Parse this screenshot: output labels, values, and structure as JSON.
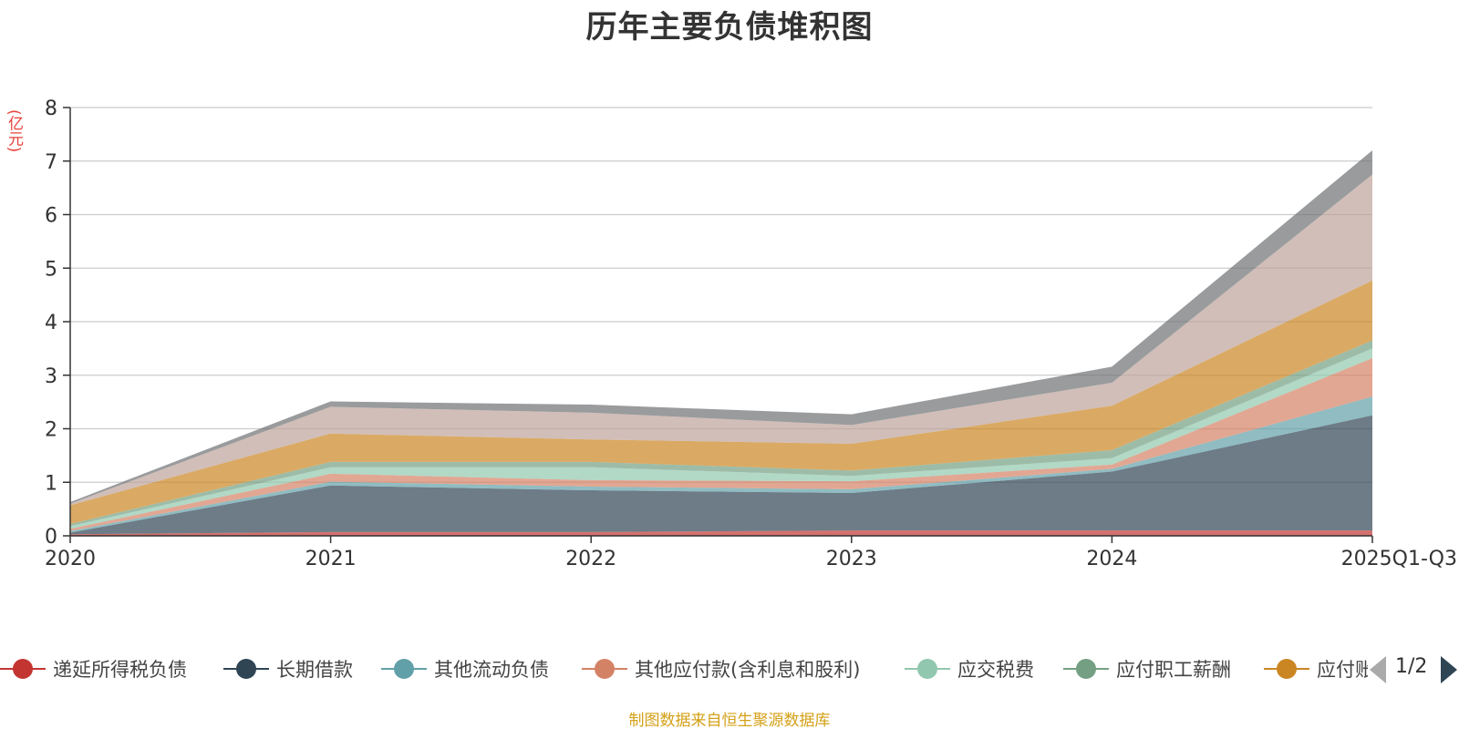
{
  "chart_data": {
    "type": "area",
    "stacked": true,
    "title": "历年主要负债堆积图",
    "y_unit": "(亿元)",
    "categories": [
      "2020",
      "2021",
      "2022",
      "2023",
      "2024",
      "2025Q1-Q3"
    ],
    "ylim": [
      0,
      8
    ],
    "yticks": [
      0,
      1,
      2,
      3,
      4,
      5,
      6,
      7,
      8
    ],
    "grid": true,
    "legend_position": "bottom",
    "legend_page": "1/2",
    "series": [
      {
        "name": "递延所得税负债",
        "color": "#c23531",
        "values": [
          0.03,
          0.07,
          0.07,
          0.1,
          0.1,
          0.1
        ]
      },
      {
        "name": "长期借款",
        "color": "#2f4554",
        "values": [
          0.03,
          0.87,
          0.78,
          0.7,
          1.1,
          2.15
        ]
      },
      {
        "name": "其他流动负债",
        "color": "#61a0a8",
        "values": [
          0.03,
          0.07,
          0.07,
          0.07,
          0.05,
          0.35
        ]
      },
      {
        "name": "其他应付款(含利息和股利)",
        "color": "#d48265",
        "values": [
          0.04,
          0.15,
          0.12,
          0.15,
          0.08,
          0.72
        ]
      },
      {
        "name": "应交税费",
        "color": "#91c7ae",
        "values": [
          0.05,
          0.12,
          0.24,
          0.1,
          0.12,
          0.18
        ]
      },
      {
        "name": "应付职工薪酬",
        "color": "#749f83",
        "values": [
          0.04,
          0.1,
          0.1,
          0.1,
          0.15,
          0.15
        ]
      },
      {
        "name": "应付账款",
        "color": "#ca8622",
        "values": [
          0.35,
          0.53,
          0.42,
          0.5,
          0.83,
          1.12
        ]
      },
      {
        "name": "",
        "color": "#bda29a",
        "values": [
          0.03,
          0.5,
          0.5,
          0.35,
          0.43,
          1.98
        ]
      },
      {
        "name": "",
        "color": "#6e7074",
        "values": [
          0.03,
          0.1,
          0.15,
          0.2,
          0.3,
          0.45
        ]
      }
    ]
  },
  "source_note": "制图数据来自恒生聚源数据库"
}
